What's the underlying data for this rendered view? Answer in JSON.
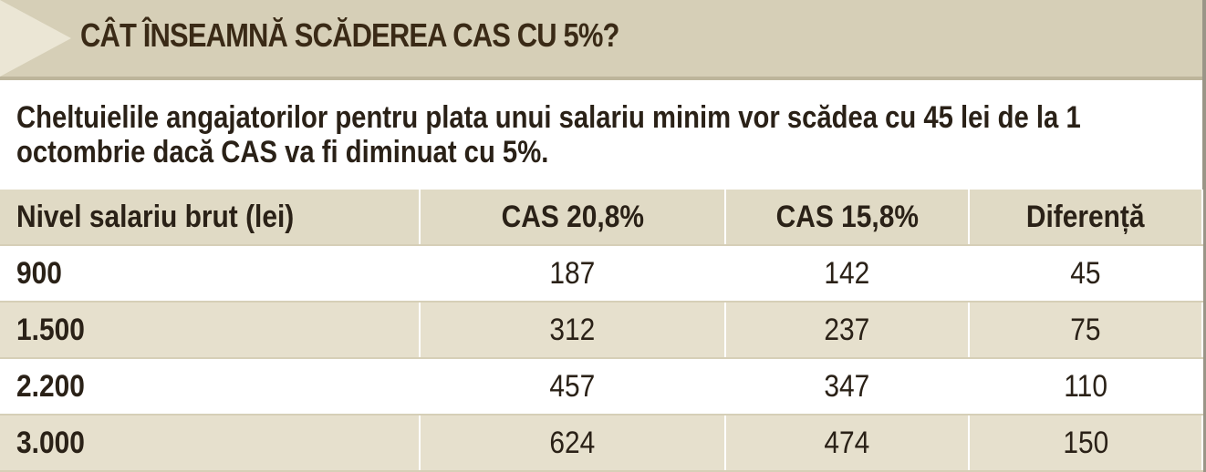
{
  "header": {
    "title": "CÂT ÎNSEAMNĂ SCĂDEREA CAS CU 5%?"
  },
  "intro": "Cheltuielile angajatorilor pentru plata unui salariu minim vor scădea cu 45 lei de la 1 octombrie dacă CAS va fi diminuat cu 5%.",
  "table": {
    "columns": [
      "Nivel salariu brut (lei)",
      "CAS 20,8%",
      "CAS 15,8%",
      "Diferență"
    ],
    "rows": [
      [
        "900",
        "187",
        "142",
        "45"
      ],
      [
        "1.500",
        "312",
        "237",
        "75"
      ],
      [
        "2.200",
        "457",
        "347",
        "110"
      ],
      [
        "3.000",
        "624",
        "474",
        "150"
      ]
    ]
  }
}
